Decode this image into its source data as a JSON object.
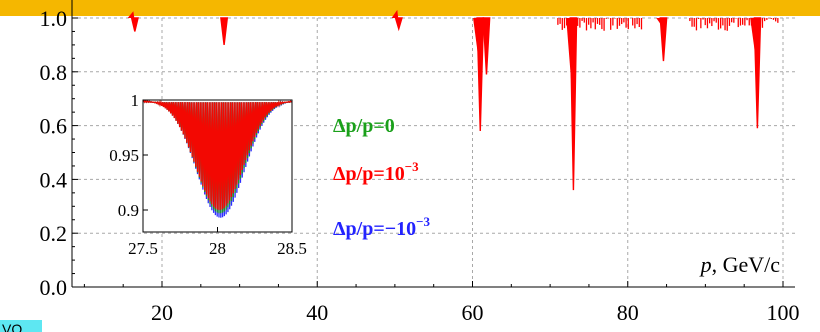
{
  "bottom_tab_text": "VO",
  "colors": {
    "top_bar": "#f5b700",
    "bottom_tab": "#5ee7f2",
    "grid": "#a8a8a8",
    "series_zero": "#1aa01a",
    "series_plus": "#ff0000",
    "series_minus": "#2323ff"
  },
  "chart_data": [
    {
      "type": "line",
      "title": "",
      "xlabel": "p, GeV/c",
      "ylabel": "",
      "xlim": [
        8,
        100
      ],
      "ylim": [
        0.0,
        1.0
      ],
      "x_ticks": [
        "20",
        "40",
        "60",
        "80",
        "100"
      ],
      "y_ticks": [
        "0.0",
        "0.2",
        "0.4",
        "0.6",
        "0.8",
        "1.0"
      ],
      "grid": true,
      "legend_position": "center-right",
      "legend": [
        {
          "pre": "Δp/p=",
          "base": "0",
          "sup": ""
        },
        {
          "pre": "Δp/p=",
          "base": "10",
          "sup": "−3"
        },
        {
          "pre": "Δp/p=",
          "base": "−10",
          "sup": "−3"
        }
      ],
      "dips": [
        {
          "x": 16.5,
          "y": 0.95
        },
        {
          "x": 28.0,
          "y": 0.9
        },
        {
          "x": 50.5,
          "y": 0.96
        },
        {
          "x": 61.0,
          "y": 0.58
        },
        {
          "x": 61.8,
          "y": 0.79
        },
        {
          "x": 73.0,
          "y": 0.36
        },
        {
          "x": 84.6,
          "y": 0.84
        },
        {
          "x": 96.7,
          "y": 0.59
        }
      ],
      "dense_bands": [
        {
          "x_start": 71.0,
          "x_end": 82.0,
          "min_y": 0.95
        },
        {
          "x_start": 88.0,
          "x_end": 99.5,
          "min_y": 0.95
        }
      ]
    },
    {
      "type": "line",
      "title": "",
      "xlabel": "",
      "ylabel": "",
      "xlim": [
        27.5,
        28.5
      ],
      "ylim": [
        0.88,
        1.0
      ],
      "x_ticks": [
        "27.5",
        "28",
        "28.5"
      ],
      "y_ticks": [
        "0.9",
        "0.95",
        "1"
      ],
      "series": [
        {
          "name": "Δp/p=−10⁻³",
          "color": "#2323ff",
          "min": 0.893
        },
        {
          "name": "Δp/p=0",
          "color": "#1aa01a",
          "min": 0.897
        },
        {
          "name": "Δp/p=10⁻³",
          "color": "#ff0000",
          "min": 0.9
        }
      ]
    }
  ]
}
